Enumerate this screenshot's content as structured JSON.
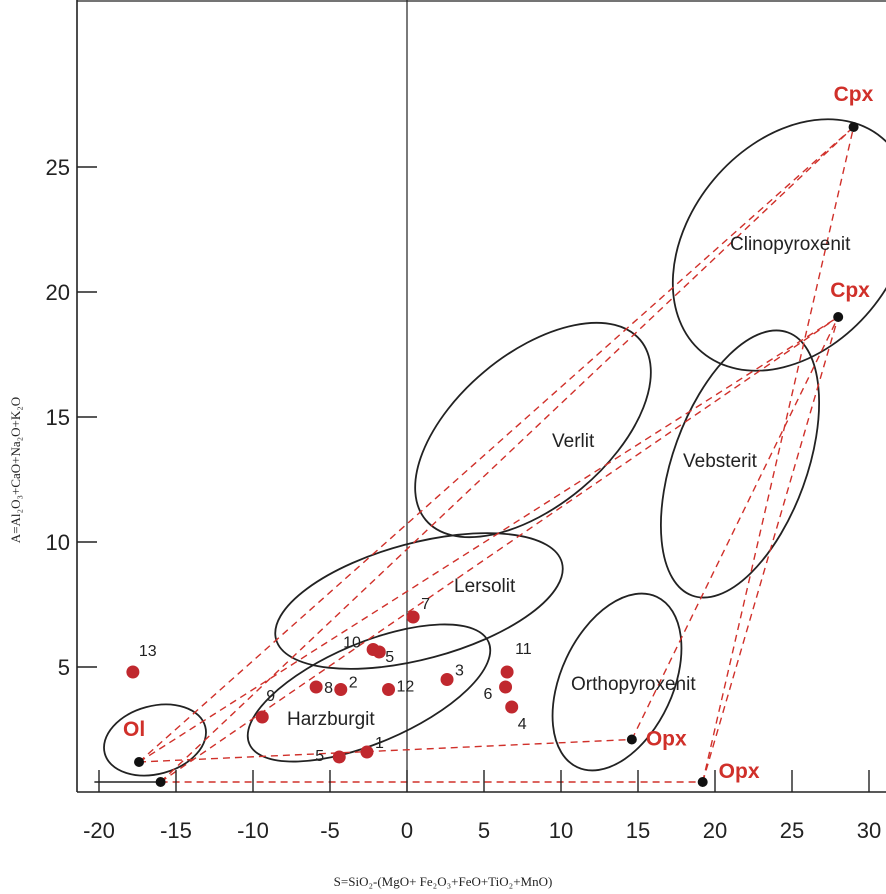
{
  "chart_data": {
    "type": "scatter",
    "xlabel": "S=SiO₂-(MgO+ Fe₂O₃+FeO+TiO₂+MnO)",
    "ylabel": "A=Al₂O₃+CaO+Na₂O+K₂O",
    "xlim": [
      -21,
      31
    ],
    "ylim": [
      0,
      31
    ],
    "x_ticks": [
      -20,
      -15,
      -10,
      -5,
      0,
      5,
      10,
      15,
      20,
      25,
      30
    ],
    "y_ticks": [
      5,
      10,
      15,
      20,
      25
    ],
    "x_tick_labels": [
      "-20",
      "-15",
      "-10",
      "-5",
      "0",
      "5",
      "10",
      "15",
      "20",
      "25",
      "30"
    ],
    "y_tick_labels": [
      "5",
      "10",
      "15",
      "20",
      "25"
    ],
    "grid": false,
    "colors": {
      "samples": "#c0282e",
      "tie_lines": "#d0302a",
      "fields": "#222222",
      "endmembers": "#111111",
      "mineral_text": "#d0302a"
    },
    "samples": [
      {
        "label": "1",
        "x": -2.6,
        "y": 1.6
      },
      {
        "label": "2",
        "x": -4.3,
        "y": 4.1
      },
      {
        "label": "3",
        "x": 2.6,
        "y": 4.5
      },
      {
        "label": "4",
        "x": 6.8,
        "y": 3.4
      },
      {
        "label": "5",
        "x": -4.4,
        "y": 1.4
      },
      {
        "label": "5",
        "x": -1.8,
        "y": 5.6
      },
      {
        "label": "6",
        "x": 6.4,
        "y": 4.2
      },
      {
        "label": "7",
        "x": 0.4,
        "y": 7.0
      },
      {
        "label": "8",
        "x": -5.9,
        "y": 4.2
      },
      {
        "label": "9",
        "x": -9.4,
        "y": 3.0
      },
      {
        "label": "10",
        "x": -2.2,
        "y": 5.7
      },
      {
        "label": "11",
        "x": 6.5,
        "y": 4.8
      },
      {
        "label": "12",
        "x": -1.2,
        "y": 4.1
      },
      {
        "label": "13",
        "x": -17.8,
        "y": 4.8
      }
    ],
    "endmembers": [
      {
        "label": "Cpx",
        "x": 29.0,
        "y": 26.6
      },
      {
        "label": "Cpx",
        "x": 28.0,
        "y": 19.0
      },
      {
        "label": "Opx",
        "x": 14.6,
        "y": 2.1
      },
      {
        "label": "Opx",
        "x": 19.2,
        "y": 0.4
      },
      {
        "label": "Ol",
        "x": -17.4,
        "y": 1.2
      },
      {
        "label": "",
        "x": -16.0,
        "y": 0.4
      }
    ],
    "fields": [
      "Clinopyroxenit",
      "Verlit",
      "Vebsterit",
      "Lersolit",
      "Orthopyroxenit",
      "Harzburgit"
    ]
  }
}
